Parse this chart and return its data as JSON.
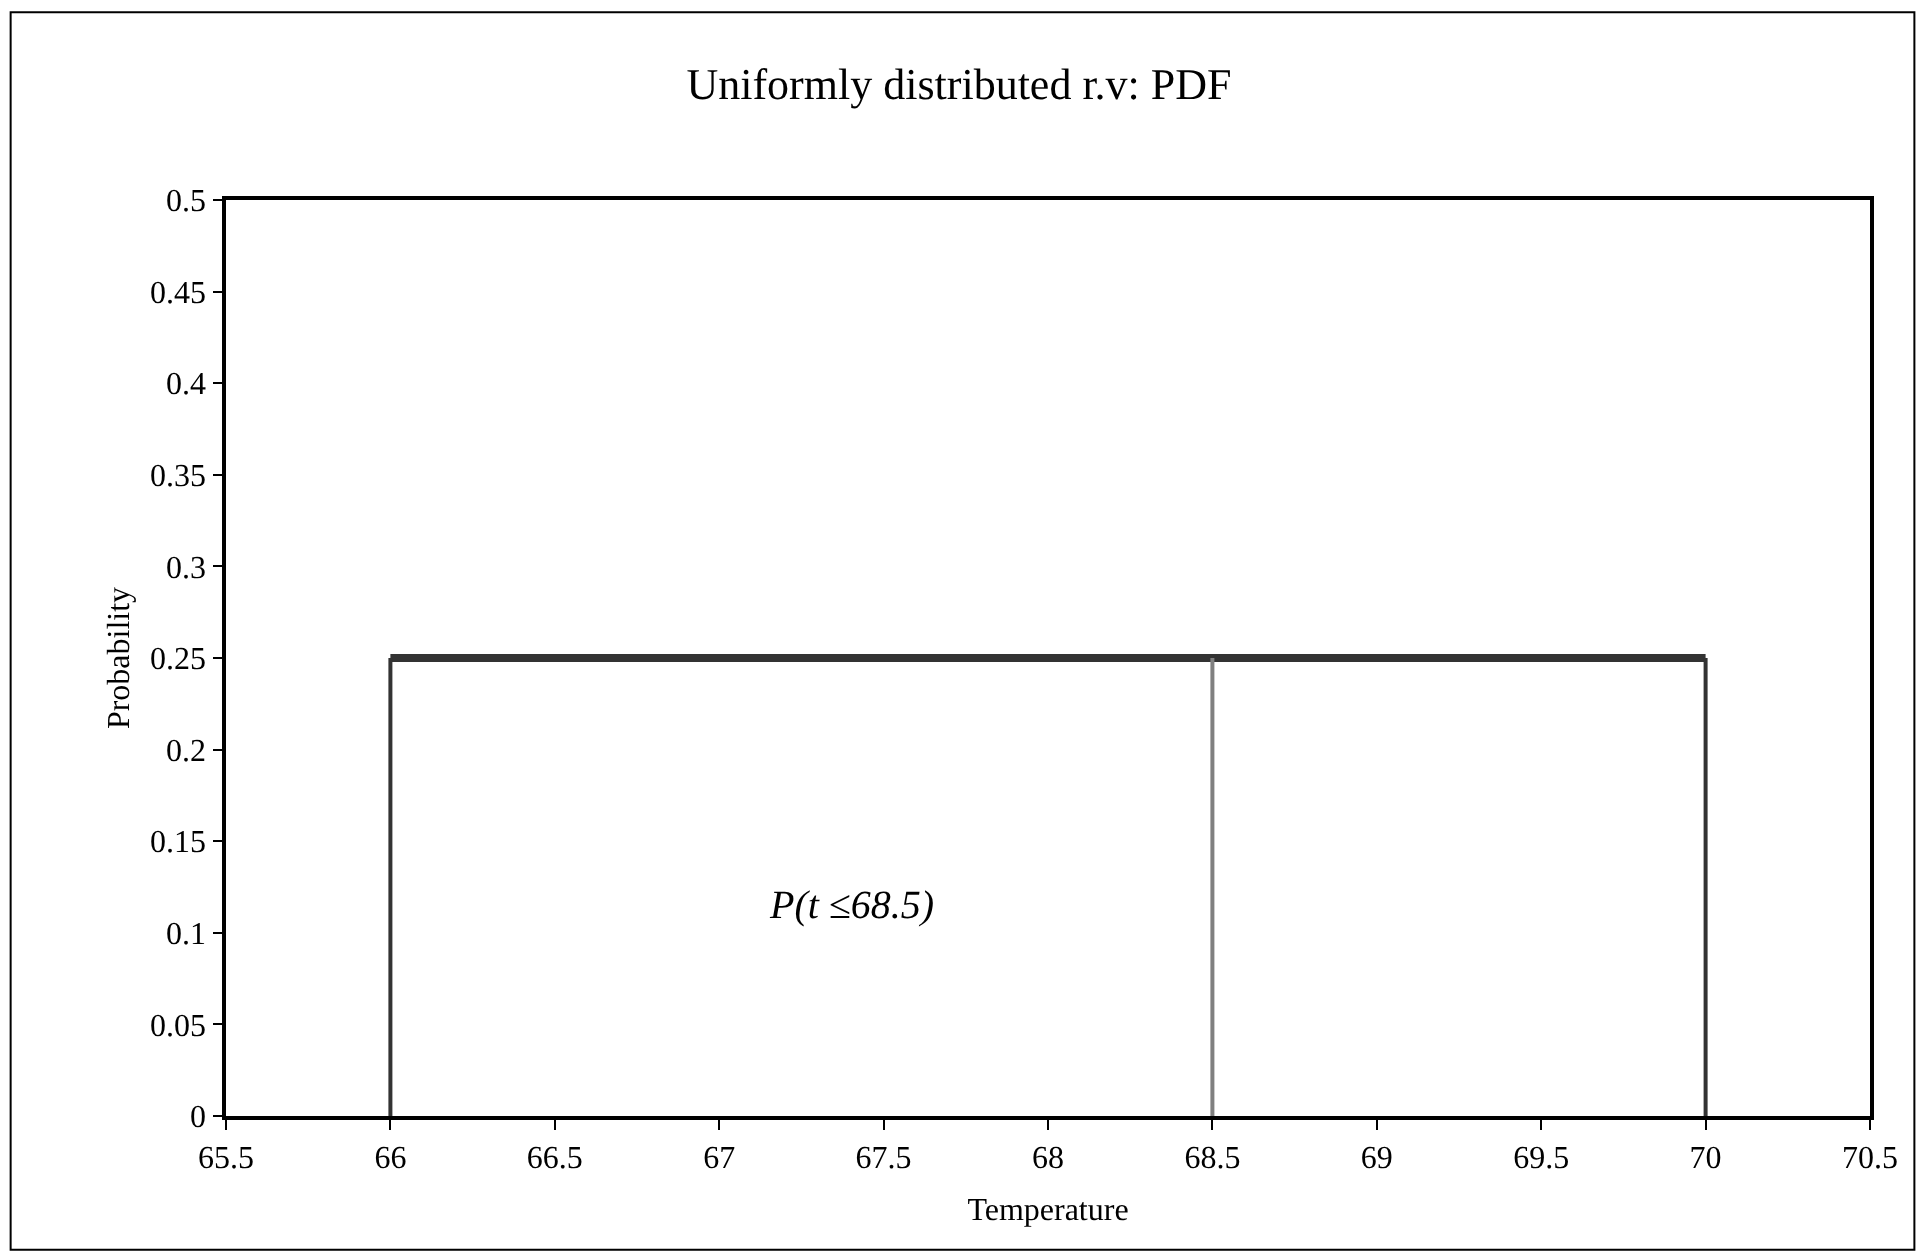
{
  "chart_data": {
    "type": "line",
    "title": "Uniformly distributed r.v: PDF",
    "xlabel": "Temperature",
    "ylabel": "Probability",
    "series": [
      {
        "x": [
          66,
          70
        ],
        "values": [
          0.25,
          0.25
        ],
        "color": "#333333"
      },
      {
        "x": [
          66,
          66
        ],
        "values": [
          0,
          0.25
        ],
        "color": "#333333"
      },
      {
        "x": [
          70,
          70
        ],
        "values": [
          0,
          0.25
        ],
        "color": "#333333"
      },
      {
        "x": [
          68.5,
          68.5
        ],
        "values": [
          0,
          0.25
        ],
        "color": "#808080"
      }
    ],
    "annotations": [
      "P(t ≤68.5)"
    ],
    "xlim": [
      65.5,
      70.5
    ],
    "xticks": [
      65.5,
      66,
      66.5,
      67,
      67.5,
      68,
      68.5,
      69,
      69.5,
      70,
      70.5
    ],
    "ylim": [
      0,
      0.5
    ],
    "yticks": [
      0,
      0.05,
      0.1,
      0.15,
      0.2,
      0.25,
      0.3,
      0.35,
      0.4,
      0.45,
      0.5
    ],
    "marker": "none",
    "line_style": "solid"
  }
}
